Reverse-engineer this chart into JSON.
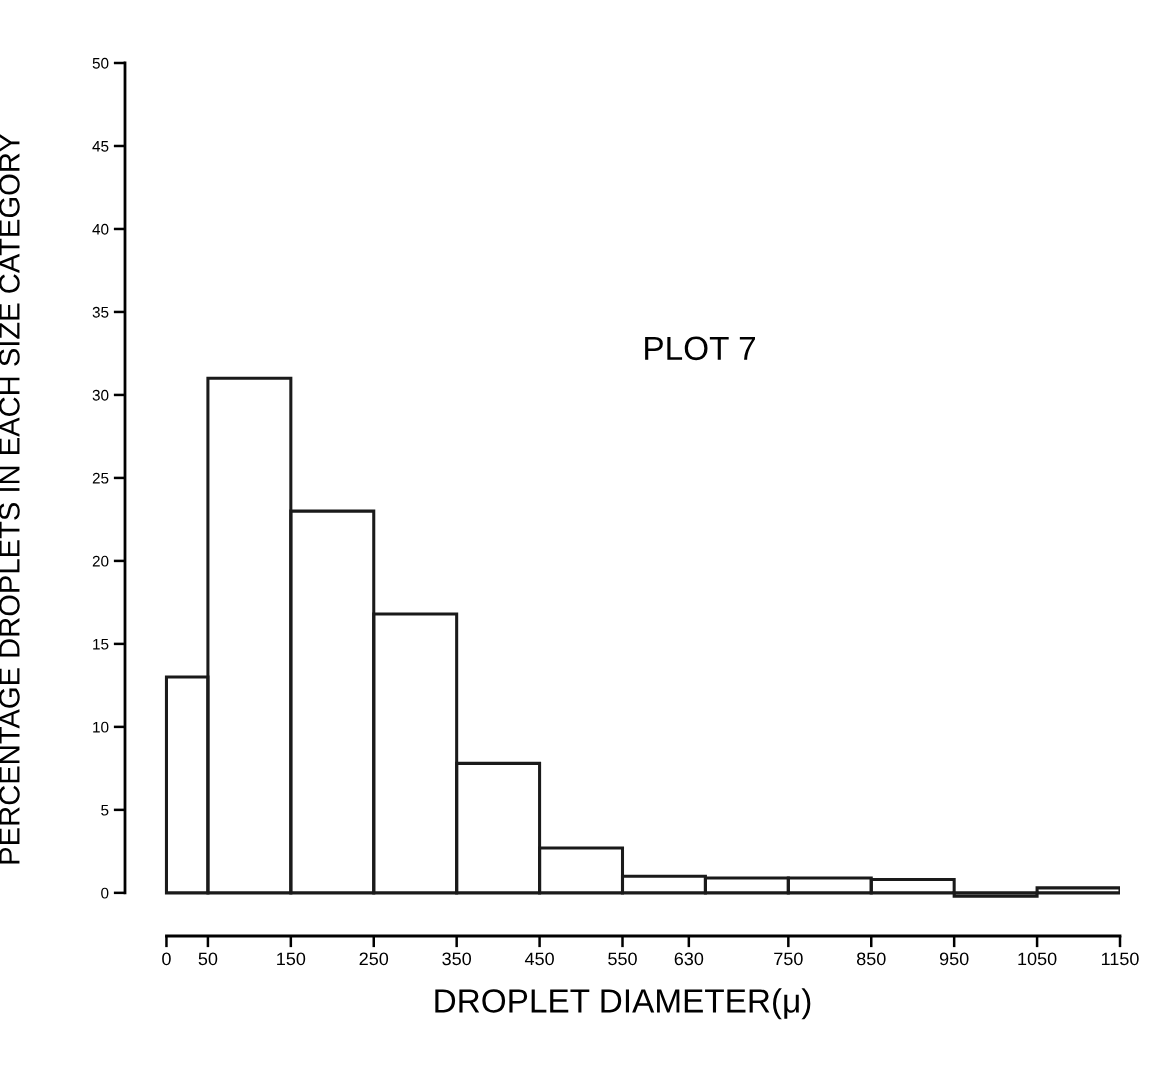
{
  "chart_data": {
    "type": "histogram",
    "xlabel": "DROPLET DIAMETER(μ)",
    "ylabel": "PERCENTAGE DROPLETS IN EACH SIZE CATEGORY",
    "annotations": [
      "PLOT 7"
    ],
    "bins": [
      0,
      50,
      150,
      250,
      350,
      450,
      550,
      650,
      750,
      850,
      950,
      1050,
      1150
    ],
    "values": [
      13,
      31,
      23,
      16.8,
      7.8,
      2.7,
      1.0,
      0.9,
      0.9,
      0.8,
      -0.2,
      0.3
    ],
    "color": "#1a1a1a",
    "xlim": [
      -50,
      1150
    ],
    "xticks": [
      0,
      50,
      150,
      250,
      350,
      450,
      550,
      630,
      750,
      850,
      950,
      1050,
      1150
    ],
    "ylim": [
      -2.6,
      50
    ],
    "yticks": [
      0,
      5,
      10,
      15,
      20,
      25,
      30,
      35,
      40,
      45,
      50
    ],
    "grid": false,
    "legend": false
  }
}
